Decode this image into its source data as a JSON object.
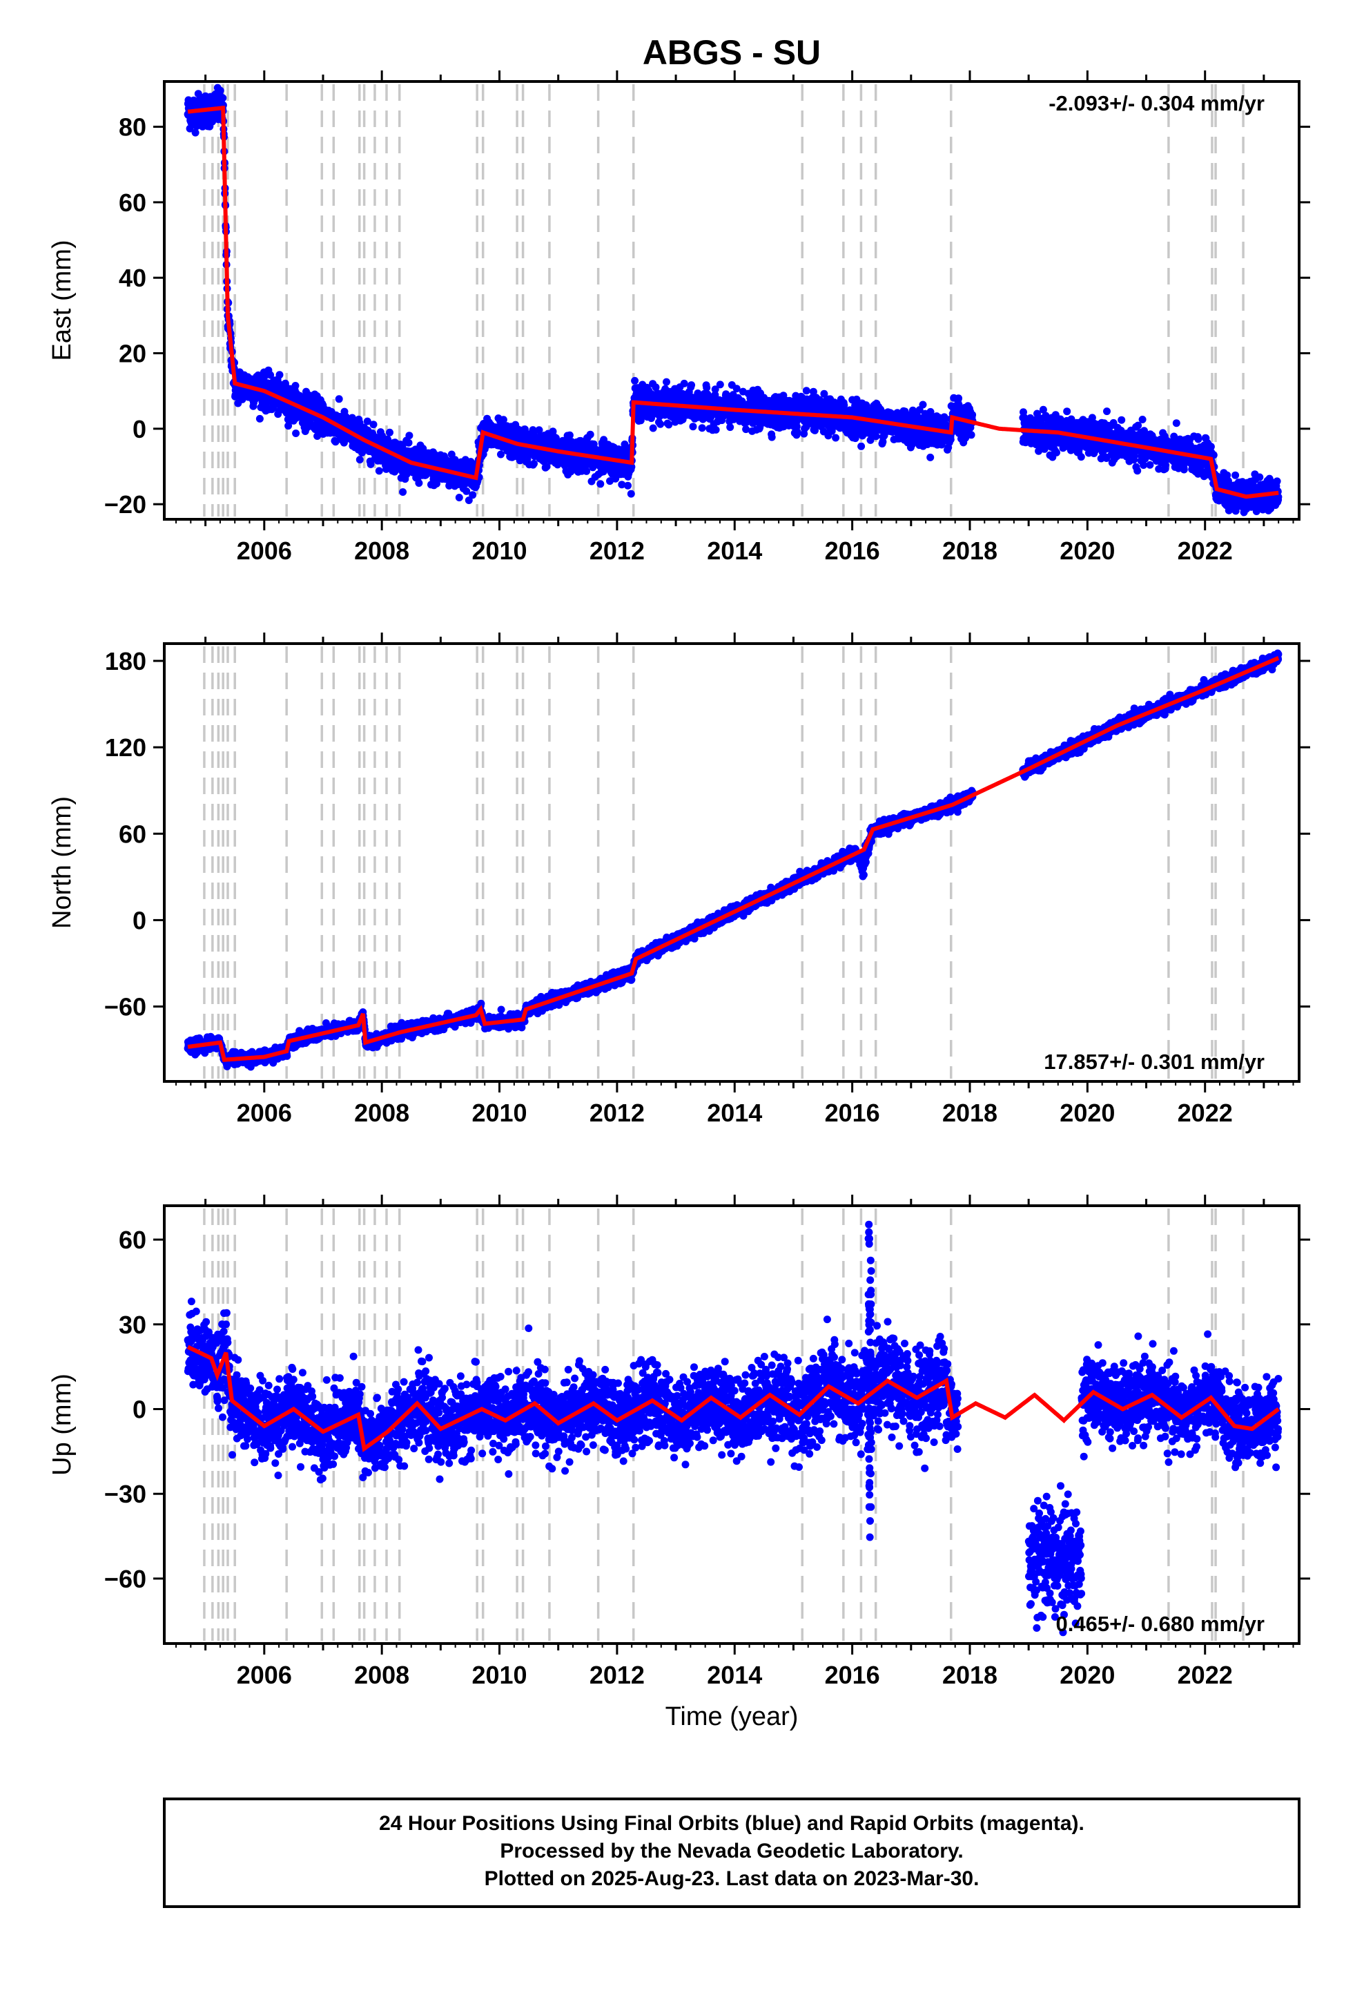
{
  "title": "ABGS - SU",
  "footer": {
    "lines": [
      "24 Hour Positions Using Final Orbits (blue) and Rapid Orbits (magenta).",
      "Processed by the Nevada Geodetic Laboratory.",
      "Plotted on 2025-Aug-23. Last data on 2023-Mar-30."
    ]
  },
  "colors": {
    "final_points": "#0000ff",
    "model_line": "#ff0000",
    "event_lines": "#c8c8c8",
    "frame": "#000000"
  },
  "event_years": [
    2004.98,
    2005.12,
    2005.22,
    2005.3,
    2005.38,
    2005.5,
    2006.38,
    2006.98,
    2007.18,
    2007.62,
    2007.7,
    2007.88,
    2008.08,
    2008.3,
    2009.62,
    2009.72,
    2010.3,
    2010.4,
    2010.85,
    2011.68,
    2012.28,
    2015.15,
    2015.85,
    2016.15,
    2016.4,
    2017.68,
    2021.38,
    2022.12,
    2022.18,
    2022.65
  ],
  "chart_data": [
    {
      "type": "scatter",
      "component": "east",
      "ylabel": "East (mm)",
      "xlabel": "",
      "xlim": [
        2004.3,
        2023.6
      ],
      "ylim": [
        -24,
        92
      ],
      "xticks": [
        2006,
        2008,
        2010,
        2012,
        2014,
        2016,
        2018,
        2020,
        2022
      ],
      "yticks": [
        -20,
        0,
        20,
        40,
        60,
        80
      ],
      "ytick_labels": [
        "−20",
        "0",
        "20",
        "40",
        "60",
        "80"
      ],
      "rate_label": "-2.093+/- 0.304 mm/yr",
      "rate_position": "top-right",
      "data_range": [
        2004.7,
        2023.25
      ],
      "gap": [
        2018.05,
        2018.9
      ],
      "noise": 2.2,
      "offsets": [
        [
          2005.35,
          -70
        ],
        [
          2005.5,
          -6
        ],
        [
          2007.7,
          -1
        ],
        [
          2009.72,
          13
        ],
        [
          2010.3,
          -4
        ],
        [
          2012.28,
          16
        ],
        [
          2017.68,
          4
        ],
        [
          2022.12,
          -10
        ],
        [
          2022.65,
          -2
        ]
      ],
      "model": {
        "a": 88.7,
        "b": -5.0,
        "amp": 1.6,
        "phase": 0.0,
        "t0": 2005.35,
        "tau": 0.3,
        "post_amp": -5.0,
        "seg_rate": {
          "2012.28": -0.3
        }
      },
      "model_curve": [
        [
          2004.7,
          84
        ],
        [
          2005.3,
          85
        ],
        [
          2005.38,
          30
        ],
        [
          2005.5,
          12
        ],
        [
          2006.0,
          10
        ],
        [
          2007.0,
          3
        ],
        [
          2007.7,
          -3
        ],
        [
          2008.5,
          -9
        ],
        [
          2009.6,
          -13
        ],
        [
          2009.72,
          -1
        ],
        [
          2010.3,
          -4
        ],
        [
          2011.0,
          -6
        ],
        [
          2012.25,
          -9
        ],
        [
          2012.28,
          7
        ],
        [
          2014.0,
          5
        ],
        [
          2016.0,
          3
        ],
        [
          2017.68,
          -1
        ],
        [
          2017.7,
          3
        ],
        [
          2018.5,
          0
        ],
        [
          2019.5,
          -1
        ],
        [
          2021.0,
          -5
        ],
        [
          2022.1,
          -8
        ],
        [
          2022.2,
          -16
        ],
        [
          2022.7,
          -18
        ],
        [
          2023.25,
          -17
        ]
      ]
    },
    {
      "type": "scatter",
      "component": "north",
      "ylabel": "North (mm)",
      "xlabel": "",
      "xlim": [
        2004.3,
        2023.6
      ],
      "ylim": [
        -112,
        192
      ],
      "xticks": [
        2006,
        2008,
        2010,
        2012,
        2014,
        2016,
        2018,
        2020,
        2022
      ],
      "yticks": [
        -60,
        0,
        60,
        120,
        180
      ],
      "ytick_labels": [
        "−60",
        "0",
        "60",
        "120",
        "180"
      ],
      "rate_label": "17.857+/- 0.301 mm/yr",
      "rate_position": "bottom-right",
      "data_range": [
        2004.7,
        2023.25
      ],
      "gap": [
        2018.05,
        2018.9
      ],
      "noise": 2.0,
      "model_curve": [
        [
          2004.7,
          -88
        ],
        [
          2005.25,
          -85
        ],
        [
          2005.32,
          -97
        ],
        [
          2006.0,
          -95
        ],
        [
          2006.38,
          -91
        ],
        [
          2006.42,
          -84
        ],
        [
          2007.6,
          -73
        ],
        [
          2007.68,
          -65
        ],
        [
          2007.72,
          -85
        ],
        [
          2008.3,
          -78
        ],
        [
          2009.6,
          -66
        ],
        [
          2009.68,
          -62
        ],
        [
          2009.75,
          -72
        ],
        [
          2010.4,
          -69
        ],
        [
          2010.45,
          -62
        ],
        [
          2012.25,
          -37
        ],
        [
          2012.32,
          -27
        ],
        [
          2016.2,
          49
        ],
        [
          2016.35,
          63
        ],
        [
          2017.7,
          80
        ],
        [
          2019.0,
          105
        ],
        [
          2020.5,
          135
        ],
        [
          2022.0,
          160
        ],
        [
          2023.25,
          182
        ]
      ],
      "dip": {
        "center": 2016.2,
        "width": 0.15,
        "depth": -18
      }
    },
    {
      "type": "scatter",
      "component": "up",
      "ylabel": "Up (mm)",
      "xlabel": "Time (year)",
      "xlim": [
        2004.3,
        2023.6
      ],
      "ylim": [
        -83,
        72
      ],
      "xticks": [
        2006,
        2008,
        2010,
        2012,
        2014,
        2016,
        2018,
        2020,
        2022
      ],
      "yticks": [
        -60,
        -30,
        0,
        30,
        60
      ],
      "ytick_labels": [
        "−60",
        "−30",
        "0",
        "30",
        "60"
      ],
      "rate_label": "0.465+/- 0.680 mm/yr",
      "rate_position": "bottom-right",
      "data_range": [
        2004.7,
        2023.25
      ],
      "gap": [
        2017.8,
        2019.9
      ],
      "noise": 6.5,
      "model_curve": [
        [
          2004.7,
          22
        ],
        [
          2005.1,
          18
        ],
        [
          2005.2,
          12
        ],
        [
          2005.35,
          20
        ],
        [
          2005.45,
          3
        ],
        [
          2006.0,
          -6
        ],
        [
          2006.5,
          0
        ],
        [
          2007.0,
          -8
        ],
        [
          2007.6,
          -2
        ],
        [
          2007.7,
          -14
        ],
        [
          2008.1,
          -8
        ],
        [
          2008.6,
          2
        ],
        [
          2009.0,
          -7
        ],
        [
          2009.7,
          0
        ],
        [
          2010.1,
          -4
        ],
        [
          2010.6,
          2
        ],
        [
          2011.0,
          -5
        ],
        [
          2011.6,
          2
        ],
        [
          2012.0,
          -4
        ],
        [
          2012.6,
          3
        ],
        [
          2013.1,
          -4
        ],
        [
          2013.6,
          4
        ],
        [
          2014.1,
          -3
        ],
        [
          2014.6,
          5
        ],
        [
          2015.1,
          -2
        ],
        [
          2015.6,
          8
        ],
        [
          2016.1,
          2
        ],
        [
          2016.6,
          10
        ],
        [
          2017.1,
          4
        ],
        [
          2017.6,
          10
        ],
        [
          2017.7,
          -3
        ],
        [
          2018.1,
          2
        ],
        [
          2018.6,
          -3
        ],
        [
          2019.1,
          5
        ],
        [
          2019.6,
          -4
        ],
        [
          2020.1,
          6
        ],
        [
          2020.6,
          0
        ],
        [
          2021.1,
          5
        ],
        [
          2021.6,
          -3
        ],
        [
          2022.1,
          4
        ],
        [
          2022.5,
          -6
        ],
        [
          2022.8,
          -7
        ],
        [
          2023.25,
          0
        ]
      ],
      "outlier_cluster": {
        "x_range": [
          2019.0,
          2019.9
        ],
        "y_center": -52,
        "y_spread": 10
      },
      "spike": {
        "center": 2016.3,
        "width": 0.05,
        "range": [
          -50,
          68
        ]
      }
    }
  ]
}
